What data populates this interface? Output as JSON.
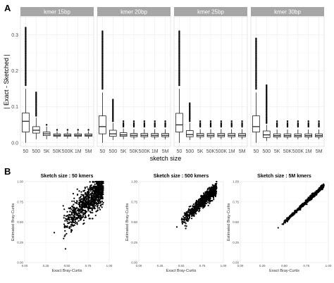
{
  "panels": {
    "a": "A",
    "b": "B"
  },
  "chart_data": [
    {
      "type": "box",
      "ylabel": "| Exact - Sketched |",
      "xlabel": "sketch size",
      "ylim": [
        -0.01,
        0.35
      ],
      "yticks": [
        0.0,
        0.1,
        0.2,
        0.3
      ],
      "grid": true,
      "facets": [
        {
          "label": "kmer 15bp",
          "categories": [
            "50",
            "500",
            "5K",
            "50K",
            "500K",
            "1M",
            "5M"
          ],
          "boxes": [
            {
              "min": 0.0,
              "q1": 0.03,
              "median": 0.06,
              "q3": 0.083,
              "max": 0.15,
              "outliers": [
                0.16,
                0.18,
                0.2,
                0.22,
                0.24,
                0.26,
                0.28,
                0.3,
                0.32
              ]
            },
            {
              "min": 0.01,
              "q1": 0.027,
              "median": 0.035,
              "q3": 0.045,
              "max": 0.07,
              "outliers": [
                0.075,
                0.085,
                0.095,
                0.11,
                0.12,
                0.13,
                0.14
              ]
            },
            {
              "min": 0.01,
              "q1": 0.02,
              "median": 0.025,
              "q3": 0.03,
              "max": 0.045,
              "outliers": [
                0.05
              ]
            },
            {
              "min": 0.012,
              "q1": 0.018,
              "median": 0.021,
              "q3": 0.025,
              "max": 0.032,
              "outliers": [
                0.036
              ]
            },
            {
              "min": 0.012,
              "q1": 0.018,
              "median": 0.021,
              "q3": 0.025,
              "max": 0.032,
              "outliers": [
                0.036
              ]
            },
            {
              "min": 0.012,
              "q1": 0.018,
              "median": 0.021,
              "q3": 0.025,
              "max": 0.032,
              "outliers": [
                0.036
              ]
            },
            {
              "min": 0.012,
              "q1": 0.018,
              "median": 0.021,
              "q3": 0.025,
              "max": 0.032,
              "outliers": [
                0.036
              ]
            }
          ]
        },
        {
          "label": "kmer 20bp",
          "categories": [
            "50",
            "500",
            "5K",
            "50K",
            "500K",
            "1M",
            "5M"
          ],
          "boxes": [
            {
              "min": 0.0,
              "q1": 0.025,
              "median": 0.045,
              "q3": 0.075,
              "max": 0.14,
              "outliers": [
                0.15,
                0.17,
                0.19,
                0.21,
                0.23,
                0.25,
                0.27,
                0.29,
                0.31
              ]
            },
            {
              "min": 0.008,
              "q1": 0.018,
              "median": 0.025,
              "q3": 0.035,
              "max": 0.055,
              "outliers": [
                0.06,
                0.07,
                0.08,
                0.09,
                0.1,
                0.11,
                0.12
              ]
            },
            {
              "min": 0.01,
              "q1": 0.018,
              "median": 0.022,
              "q3": 0.028,
              "max": 0.04,
              "outliers": [
                0.045,
                0.055,
                0.06
              ]
            },
            {
              "min": 0.01,
              "q1": 0.017,
              "median": 0.021,
              "q3": 0.026,
              "max": 0.038,
              "outliers": [
                0.045,
                0.055,
                0.06
              ]
            },
            {
              "min": 0.01,
              "q1": 0.017,
              "median": 0.021,
              "q3": 0.026,
              "max": 0.038,
              "outliers": [
                0.045,
                0.055,
                0.06
              ]
            },
            {
              "min": 0.01,
              "q1": 0.017,
              "median": 0.021,
              "q3": 0.026,
              "max": 0.038,
              "outliers": [
                0.045,
                0.055,
                0.06
              ]
            },
            {
              "min": 0.01,
              "q1": 0.017,
              "median": 0.021,
              "q3": 0.026,
              "max": 0.038,
              "outliers": [
                0.045,
                0.055,
                0.06
              ]
            }
          ]
        },
        {
          "label": "kmer 25bp",
          "categories": [
            "50",
            "500",
            "5K",
            "50K",
            "500K",
            "1M",
            "5M"
          ],
          "boxes": [
            {
              "min": 0.0,
              "q1": 0.03,
              "median": 0.05,
              "q3": 0.082,
              "max": 0.15,
              "outliers": [
                0.16,
                0.18,
                0.2,
                0.22,
                0.24,
                0.26,
                0.28,
                0.3,
                0.31
              ]
            },
            {
              "min": 0.008,
              "q1": 0.017,
              "median": 0.023,
              "q3": 0.034,
              "max": 0.055,
              "outliers": [
                0.06,
                0.07,
                0.08,
                0.09,
                0.1,
                0.11
              ]
            },
            {
              "min": 0.01,
              "q1": 0.017,
              "median": 0.021,
              "q3": 0.026,
              "max": 0.038,
              "outliers": [
                0.045,
                0.055,
                0.06
              ]
            },
            {
              "min": 0.01,
              "q1": 0.017,
              "median": 0.021,
              "q3": 0.026,
              "max": 0.038,
              "outliers": [
                0.045,
                0.055,
                0.06
              ]
            },
            {
              "min": 0.01,
              "q1": 0.017,
              "median": 0.021,
              "q3": 0.026,
              "max": 0.038,
              "outliers": [
                0.045,
                0.055,
                0.06
              ]
            },
            {
              "min": 0.01,
              "q1": 0.017,
              "median": 0.021,
              "q3": 0.026,
              "max": 0.038,
              "outliers": [
                0.045,
                0.055,
                0.06
              ]
            },
            {
              "min": 0.01,
              "q1": 0.017,
              "median": 0.021,
              "q3": 0.026,
              "max": 0.038,
              "outliers": [
                0.045,
                0.055,
                0.06
              ]
            }
          ]
        },
        {
          "label": "kmer 30bp",
          "categories": [
            "50",
            "500",
            "5K",
            "50K",
            "500K",
            "1M",
            "5M"
          ],
          "boxes": [
            {
              "min": 0.0,
              "q1": 0.03,
              "median": 0.045,
              "q3": 0.075,
              "max": 0.14,
              "outliers": [
                0.15,
                0.17,
                0.19,
                0.21,
                0.23,
                0.25,
                0.27,
                0.29
              ]
            },
            {
              "min": 0.005,
              "q1": 0.015,
              "median": 0.022,
              "q3": 0.033,
              "max": 0.05,
              "outliers": [
                0.055,
                0.065,
                0.075,
                0.09,
                0.11,
                0.13,
                0.16
              ]
            },
            {
              "min": 0.01,
              "q1": 0.016,
              "median": 0.02,
              "q3": 0.025,
              "max": 0.037,
              "outliers": [
                0.045,
                0.055,
                0.06
              ]
            },
            {
              "min": 0.01,
              "q1": 0.016,
              "median": 0.02,
              "q3": 0.025,
              "max": 0.037,
              "outliers": [
                0.045,
                0.055,
                0.06
              ]
            },
            {
              "min": 0.01,
              "q1": 0.016,
              "median": 0.02,
              "q3": 0.025,
              "max": 0.037,
              "outliers": [
                0.045,
                0.055,
                0.06
              ]
            },
            {
              "min": 0.01,
              "q1": 0.016,
              "median": 0.02,
              "q3": 0.025,
              "max": 0.037,
              "outliers": [
                0.045,
                0.055,
                0.06
              ]
            },
            {
              "min": 0.01,
              "q1": 0.016,
              "median": 0.02,
              "q3": 0.025,
              "max": 0.037,
              "outliers": [
                0.045,
                0.055,
                0.06
              ]
            }
          ]
        }
      ]
    },
    {
      "type": "scatter",
      "title": "Sketch size : 50 kmers",
      "xlabel": "Exact Bray-Curtis",
      "ylabel": "Estimated Bray-Curtis",
      "xlim": [
        0.0,
        1.0
      ],
      "ylim": [
        0.0,
        1.0
      ],
      "ticks": [
        "0.00",
        "0.25",
        "0.50",
        "0.75",
        "1.00"
      ],
      "cluster": {
        "x_range": [
          0.45,
          0.93
        ],
        "slope": 1.0,
        "spread": 0.09,
        "points": 900
      },
      "extra_points": [
        [
          0.35,
          0.37
        ],
        [
          0.48,
          0.45
        ]
      ]
    },
    {
      "type": "scatter",
      "title": "Sketch size : 500 kmers",
      "xlabel": "Exact Bray-Curtis",
      "ylabel": "Estimated Bray-Curtis",
      "xlim": [
        0.0,
        1.0
      ],
      "ylim": [
        0.0,
        1.0
      ],
      "ticks": [
        "0.00",
        "0.25",
        "0.50",
        "0.75",
        "1.00"
      ],
      "cluster": {
        "x_range": [
          0.5,
          0.92
        ],
        "slope": 1.0,
        "spread": 0.04,
        "points": 700
      },
      "extra_points": [
        [
          0.45,
          0.44
        ]
      ]
    },
    {
      "type": "scatter",
      "title": "Sketch size : 5M kmers",
      "xlabel": "Exact Bray-Curtis",
      "ylabel": "Estimated Bray-Curtis",
      "xlim": [
        0.0,
        1.0
      ],
      "ylim": [
        0.0,
        1.0
      ],
      "ticks": [
        "0.00",
        "0.25",
        "0.50",
        "0.75",
        "1.00"
      ],
      "cluster": {
        "x_range": [
          0.47,
          0.95
        ],
        "slope": 1.0,
        "spread": 0.012,
        "points": 500
      },
      "extra_points": [
        [
          0.43,
          0.43
        ]
      ]
    }
  ]
}
